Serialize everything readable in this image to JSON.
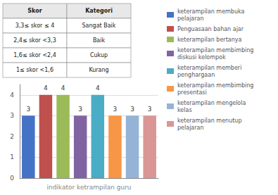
{
  "chart_data": {
    "type": "bar",
    "categories": [
      "keterampilan membuka\npelajaran",
      "Penguasaan bahan ajar",
      "keterampilan bertanya",
      "keterampilan membimbing\ndiskusi kelompok",
      "keterampilan memberi\npenghargaan",
      "keterampilan membimbing\npresentasi",
      "keterampilan mengelola\nkelas",
      "keterampilan menutup\npelajaran"
    ],
    "values": [
      3,
      4,
      4,
      3,
      4,
      3,
      3,
      3
    ],
    "colors": [
      "#4472C4",
      "#C0504D",
      "#9BBB59",
      "#8064A2",
      "#4BACC6",
      "#F79646",
      "#95B3D7",
      "#D99694"
    ],
    "xlabel": "indikator ketrampilan guru",
    "ylim": [
      0,
      4.5
    ],
    "yticks": [
      0,
      1,
      2,
      3,
      4
    ],
    "grid": true,
    "data_labels": true,
    "tick_labels": "y",
    "legend": "upper right",
    "table": {
      "headers": [
        "Skor",
        "Kategori"
      ],
      "rows": [
        [
          "3,3≤ skor ≤ 4",
          "Sangat Baik"
        ],
        [
          "2,4≤ skor <3,3",
          "Baik"
        ],
        [
          "1,6≤ skor <2,4",
          "Cukup"
        ],
        [
          "1≤ skor <1,6",
          "Kurang"
        ]
      ]
    }
  }
}
